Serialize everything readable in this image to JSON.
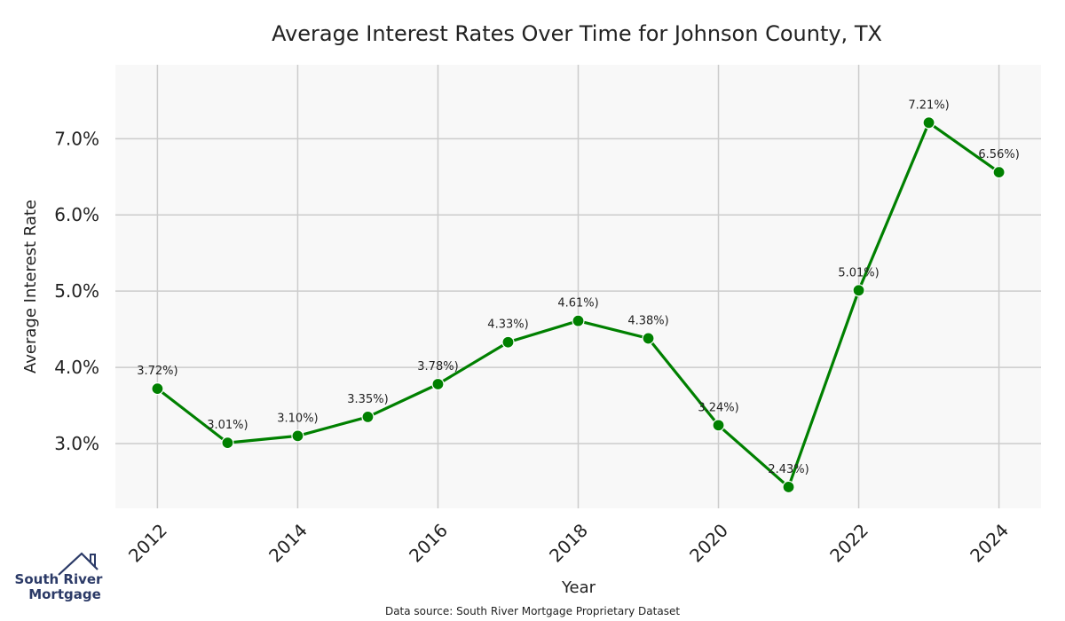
{
  "chart_data": {
    "type": "line",
    "title": "Average Interest Rates Over Time for Johnson County, TX",
    "xlabel": "Year",
    "ylabel": "Average Interest Rate",
    "x": [
      2012,
      2013,
      2014,
      2015,
      2016,
      2017,
      2018,
      2019,
      2020,
      2021,
      2022,
      2023,
      2024
    ],
    "values": [
      3.72,
      3.01,
      3.1,
      3.35,
      3.78,
      4.33,
      4.61,
      4.38,
      3.24,
      2.43,
      5.01,
      7.21,
      6.56
    ],
    "data_labels": [
      "3.72%)",
      "3.01%)",
      "3.10%)",
      "3.35%)",
      "3.78%)",
      "4.33%)",
      "4.61%)",
      "4.38%)",
      "3.24%)",
      "2.43%)",
      "5.01%)",
      "7.21%)",
      "6.56%)"
    ],
    "x_ticks": [
      2012,
      2014,
      2016,
      2018,
      2020,
      2022,
      2024
    ],
    "x_tick_labels": [
      "2012",
      "2014",
      "2016",
      "2018",
      "2020",
      "2022",
      "2024"
    ],
    "y_ticks": [
      3.0,
      4.0,
      5.0,
      6.0,
      7.0
    ],
    "y_tick_labels": [
      "3.0%",
      "4.0%",
      "5.0%",
      "6.0%",
      "7.0%"
    ],
    "xlim": [
      2011.4,
      2024.6
    ],
    "ylim": [
      2.15,
      7.97
    ],
    "grid": true,
    "line_color": "#008000",
    "background_color": "#f8f8f8",
    "grid_color": "#cccccc"
  },
  "footer": {
    "source": "Data source: South River Mortgage Proprietary Dataset"
  },
  "logo": {
    "line1": "South River",
    "line2": "Mortgage",
    "color": "#2b3a67",
    "icon": "house-roof-icon"
  }
}
